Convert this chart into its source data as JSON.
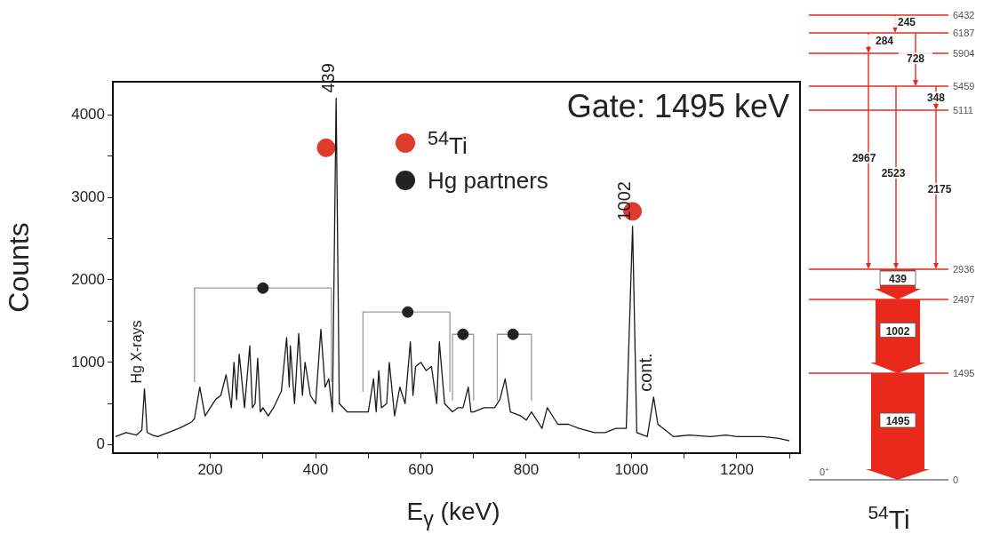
{
  "chart_data": [
    {
      "type": "line",
      "title": "Gate: 1495 keV",
      "xlabel": "E$_{γ}$ (keV)",
      "ylabel": "Counts",
      "xlim": [
        15,
        1320
      ],
      "ylim": [
        -100,
        4400
      ],
      "xticks": [
        {
          "value": 100,
          "label": null
        },
        200,
        {
          "value": 300,
          "label": null
        },
        400,
        {
          "value": 500,
          "label": null
        },
        600,
        {
          "value": 700,
          "label": null
        },
        800,
        {
          "value": 900,
          "label": null
        },
        1000,
        {
          "value": 1100,
          "label": null
        },
        1200,
        {
          "value": 1300,
          "label": null
        }
      ],
      "yticks": [
        0,
        {
          "value": 500,
          "label": null
        },
        1000,
        {
          "value": 1500,
          "label": null
        },
        2000,
        {
          "value": 2500,
          "label": null
        },
        3000,
        {
          "value": 3500,
          "label": null
        },
        4000
      ],
      "series": [
        {
          "color": "#1a1a1a",
          "x": [
            20,
            40,
            60,
            70,
            75,
            80,
            90,
            100,
            120,
            140,
            150,
            165,
            170,
            180,
            190,
            200,
            210,
            220,
            230,
            240,
            245,
            250,
            255,
            265,
            275,
            280,
            285,
            290,
            295,
            300,
            310,
            320,
            335,
            345,
            350,
            352,
            360,
            368,
            375,
            380,
            390,
            400,
            410,
            418,
            425,
            432,
            439,
            445,
            460,
            480,
            500,
            510,
            515,
            520,
            525,
            535,
            540,
            550,
            560,
            570,
            580,
            585,
            590,
            600,
            610,
            620,
            630,
            635,
            645,
            660,
            670,
            680,
            690,
            695,
            700,
            720,
            740,
            750,
            760,
            770,
            790,
            800,
            810,
            830,
            840,
            860,
            880,
            900,
            930,
            950,
            970,
            990,
            1002,
            1010,
            1030,
            1042,
            1050,
            1070,
            1080,
            1110,
            1150,
            1180,
            1200,
            1230,
            1250,
            1280,
            1300
          ],
          "values": [
            100,
            150,
            120,
            180,
            680,
            150,
            120,
            100,
            150,
            200,
            230,
            280,
            320,
            700,
            350,
            450,
            550,
            600,
            850,
            450,
            1000,
            550,
            1100,
            450,
            1200,
            450,
            500,
            1050,
            400,
            450,
            350,
            450,
            650,
            1300,
            700,
            1200,
            500,
            1350,
            600,
            1000,
            600,
            500,
            1400,
            700,
            800,
            400,
            4200,
            500,
            400,
            400,
            400,
            800,
            400,
            900,
            450,
            500,
            1000,
            350,
            700,
            500,
            1250,
            600,
            950,
            1000,
            900,
            950,
            500,
            1250,
            500,
            400,
            450,
            450,
            700,
            400,
            400,
            450,
            450,
            550,
            800,
            400,
            350,
            300,
            400,
            200,
            450,
            250,
            250,
            200,
            150,
            150,
            200,
            200,
            2650,
            150,
            100,
            580,
            250,
            150,
            100,
            120,
            100,
            120,
            100,
            100,
            100,
            80,
            50
          ]
        },
        {
          "type": "scatter",
          "name": "$^{54}$Ti",
          "color": "#e03a2a",
          "marker": "circle",
          "x": [
            420,
            1002
          ],
          "values": [
            3600,
            2830
          ]
        },
        {
          "type": "scatter",
          "name": "Hg partners",
          "color": "#222222",
          "marker": "circle",
          "x": [
            300,
            575,
            680,
            775
          ],
          "values": [
            1900,
            1610,
            1340,
            1340
          ],
          "xerrors": [
            [
              170,
              430
            ],
            [
              490,
              655
            ],
            [
              660,
              700
            ],
            [
              745,
              810
            ]
          ]
        }
      ],
      "annotations": [
        {
          "text": "439",
          "x": 439,
          "y": 4200
        },
        {
          "text": "1002",
          "x": 1002,
          "y": 2650
        },
        {
          "text": "Hg X-rays",
          "x": 75,
          "y": 680
        },
        {
          "text": "cont.",
          "x": 1042,
          "y": 580
        }
      ],
      "legend": "top"
    },
    {
      "type": "other",
      "title": "$^{54}$Ti",
      "color": "#e8291c",
      "annotations": [
        "6432",
        "6187",
        "5904",
        "5459",
        "5111",
        "2936",
        "2497",
        "1495",
        "0",
        "0$^{+}$",
        "245",
        "284",
        "728",
        "348",
        "2967",
        "2523",
        "2175",
        "439",
        "1002",
        "1495"
      ]
    }
  ]
}
